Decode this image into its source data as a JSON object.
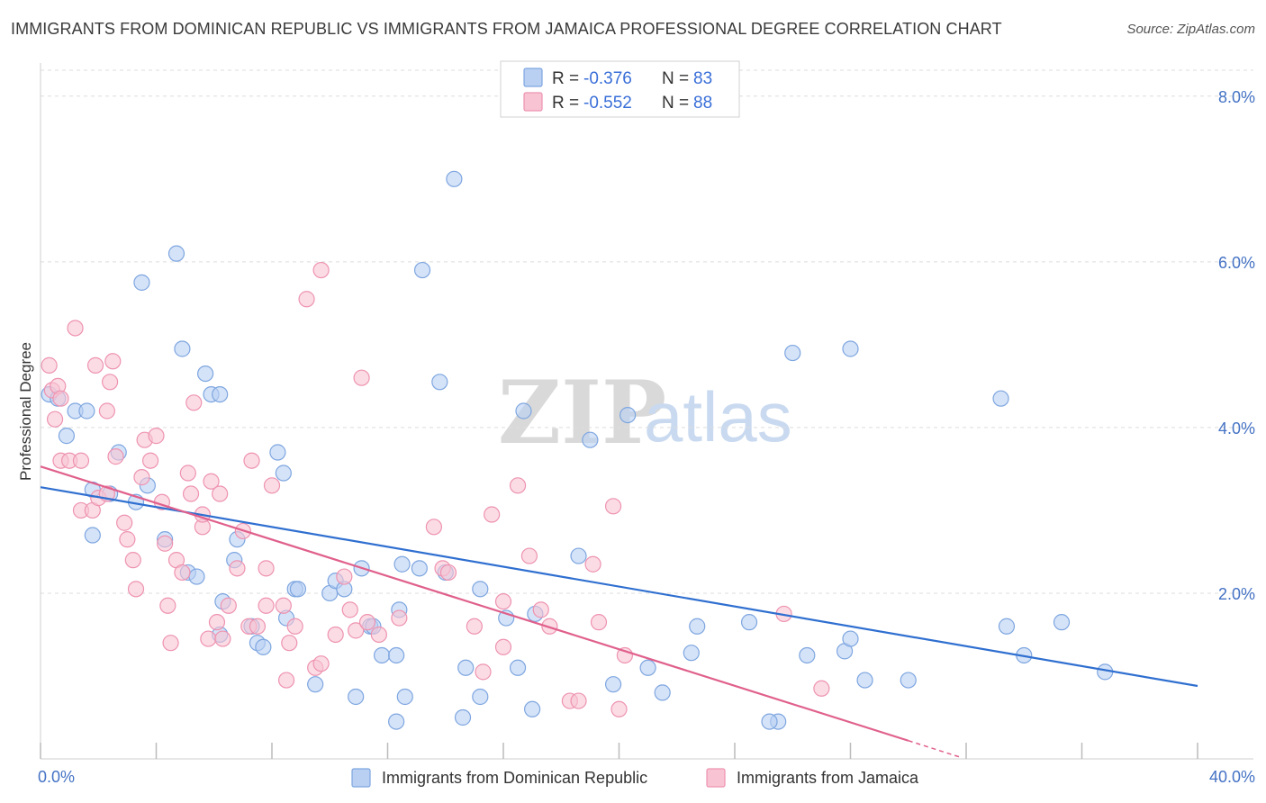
{
  "title": "IMMIGRANTS FROM DOMINICAN REPUBLIC VS IMMIGRANTS FROM JAMAICA PROFESSIONAL DEGREE CORRELATION CHART",
  "source": "Source: ZipAtlas.com",
  "watermark": {
    "zip": "ZIP",
    "atlas": "atlas"
  },
  "colors": {
    "blue_fill": "#b9d0f3",
    "blue_stroke": "#7ea6e0",
    "blue_line": "#2f6fd0",
    "pink_fill": "#f8c4d4",
    "pink_stroke": "#ee93b0",
    "pink_line": "#e0608c",
    "axis_text": "#4472c4",
    "grid": "#dddddd"
  },
  "legend": {
    "rows": [
      {
        "r_label": "R = ",
        "r_value": "-0.376",
        "n_label": "N = ",
        "n_value": "83"
      },
      {
        "r_label": "R = ",
        "r_value": "-0.552",
        "n_label": "N = ",
        "n_value": "88"
      }
    ]
  },
  "chart_data": {
    "type": "scatter",
    "title": "IMMIGRANTS FROM DOMINICAN REPUBLIC VS IMMIGRANTS FROM JAMAICA PROFESSIONAL DEGREE CORRELATION CHART",
    "xlabel": "",
    "ylabel": "Professional Degree",
    "xlim": [
      0,
      40
    ],
    "ylim": [
      0,
      8.4
    ],
    "x_tick_labels": [
      "0.0%",
      "40.0%"
    ],
    "y_ticks": [
      2,
      4,
      6,
      8
    ],
    "y_tick_labels": [
      "2.0%",
      "4.0%",
      "6.0%",
      "8.0%"
    ],
    "grid": true,
    "legend_position": "bottom",
    "series": [
      {
        "name": "Immigrants from Dominican Republic",
        "color": "#b9d0f3",
        "trend": {
          "x": [
            0,
            40
          ],
          "y": [
            3.28,
            0.88
          ]
        },
        "points": [
          [
            0.3,
            4.4
          ],
          [
            0.6,
            4.35
          ],
          [
            1.2,
            4.2
          ],
          [
            1.6,
            4.2
          ],
          [
            0.9,
            3.9
          ],
          [
            1.8,
            3.25
          ],
          [
            2.7,
            3.7
          ],
          [
            3.7,
            3.3
          ],
          [
            3.5,
            5.75
          ],
          [
            4.7,
            6.1
          ],
          [
            4.9,
            4.95
          ],
          [
            5.7,
            4.65
          ],
          [
            5.9,
            4.4
          ],
          [
            6.2,
            4.4
          ],
          [
            1.8,
            2.7
          ],
          [
            2.4,
            3.2
          ],
          [
            3.3,
            3.1
          ],
          [
            4.3,
            2.65
          ],
          [
            5.1,
            2.25
          ],
          [
            5.4,
            2.2
          ],
          [
            6.3,
            1.9
          ],
          [
            6.7,
            2.4
          ],
          [
            6.8,
            2.65
          ],
          [
            7.3,
            1.6
          ],
          [
            7.5,
            1.4
          ],
          [
            7.7,
            1.35
          ],
          [
            8.2,
            3.7
          ],
          [
            8.4,
            3.45
          ],
          [
            8.5,
            1.7
          ],
          [
            8.8,
            2.05
          ],
          [
            8.9,
            2.05
          ],
          [
            9.5,
            0.9
          ],
          [
            10.0,
            2.0
          ],
          [
            10.2,
            2.15
          ],
          [
            10.5,
            2.05
          ],
          [
            10.9,
            0.75
          ],
          [
            11.1,
            2.3
          ],
          [
            11.4,
            1.6
          ],
          [
            11.5,
            1.6
          ],
          [
            11.8,
            1.25
          ],
          [
            12.3,
            0.45
          ],
          [
            12.4,
            1.8
          ],
          [
            12.5,
            2.35
          ],
          [
            12.6,
            0.75
          ],
          [
            13.1,
            2.3
          ],
          [
            13.2,
            5.9
          ],
          [
            13.8,
            4.55
          ],
          [
            14.0,
            2.25
          ],
          [
            14.3,
            7.0
          ],
          [
            14.6,
            0.5
          ],
          [
            14.7,
            1.1
          ],
          [
            15.2,
            2.05
          ],
          [
            15.2,
            0.75
          ],
          [
            16.1,
            1.7
          ],
          [
            16.5,
            1.1
          ],
          [
            16.7,
            4.2
          ],
          [
            17.1,
            1.75
          ],
          [
            17.0,
            0.6
          ],
          [
            18.6,
            2.45
          ],
          [
            19.0,
            3.85
          ],
          [
            19.8,
            0.9
          ],
          [
            20.3,
            4.15
          ],
          [
            21.0,
            1.1
          ],
          [
            21.5,
            0.8
          ],
          [
            22.7,
            1.6
          ],
          [
            24.5,
            1.65
          ],
          [
            25.5,
            0.45
          ],
          [
            25.2,
            0.45
          ],
          [
            26.0,
            4.9
          ],
          [
            26.5,
            1.25
          ],
          [
            27.8,
            1.3
          ],
          [
            28.0,
            1.45
          ],
          [
            28.0,
            4.95
          ],
          [
            28.5,
            0.95
          ],
          [
            30.0,
            0.95
          ],
          [
            33.2,
            4.35
          ],
          [
            33.4,
            1.6
          ],
          [
            34.0,
            1.25
          ],
          [
            35.3,
            1.65
          ],
          [
            36.8,
            1.05
          ],
          [
            22.5,
            1.28
          ],
          [
            12.3,
            1.25
          ],
          [
            6.2,
            1.5
          ]
        ]
      },
      {
        "name": "Immigrants from Jamaica",
        "color": "#f8c4d4",
        "trend": {
          "x": [
            0,
            30.0
          ],
          "y": [
            3.53,
            0.22
          ]
        },
        "trend_dashed": {
          "x": [
            30.0,
            31.8
          ],
          "y": [
            0.22,
            0.02
          ]
        },
        "points": [
          [
            0.3,
            4.75
          ],
          [
            0.4,
            4.45
          ],
          [
            0.6,
            4.5
          ],
          [
            0.5,
            4.1
          ],
          [
            0.7,
            4.35
          ],
          [
            1.2,
            5.2
          ],
          [
            0.7,
            3.6
          ],
          [
            1.0,
            3.6
          ],
          [
            1.4,
            3.6
          ],
          [
            1.4,
            3.0
          ],
          [
            1.8,
            3.0
          ],
          [
            2.0,
            3.15
          ],
          [
            2.3,
            3.2
          ],
          [
            1.9,
            4.75
          ],
          [
            2.4,
            4.55
          ],
          [
            2.5,
            4.8
          ],
          [
            2.3,
            4.2
          ],
          [
            2.6,
            3.65
          ],
          [
            2.9,
            2.85
          ],
          [
            3.0,
            2.65
          ],
          [
            3.2,
            2.4
          ],
          [
            3.3,
            2.05
          ],
          [
            3.5,
            3.4
          ],
          [
            3.6,
            3.85
          ],
          [
            3.8,
            3.6
          ],
          [
            4.0,
            3.9
          ],
          [
            4.2,
            3.1
          ],
          [
            4.3,
            2.6
          ],
          [
            4.4,
            1.85
          ],
          [
            4.5,
            1.4
          ],
          [
            4.7,
            2.4
          ],
          [
            4.9,
            2.25
          ],
          [
            5.1,
            3.45
          ],
          [
            5.2,
            3.2
          ],
          [
            5.3,
            4.3
          ],
          [
            5.6,
            2.8
          ],
          [
            5.6,
            2.95
          ],
          [
            5.8,
            1.45
          ],
          [
            5.9,
            3.35
          ],
          [
            6.1,
            1.65
          ],
          [
            6.2,
            3.2
          ],
          [
            6.3,
            1.45
          ],
          [
            6.5,
            1.85
          ],
          [
            6.8,
            2.3
          ],
          [
            7.0,
            2.75
          ],
          [
            7.2,
            1.6
          ],
          [
            7.3,
            3.6
          ],
          [
            7.5,
            1.6
          ],
          [
            7.8,
            1.85
          ],
          [
            7.8,
            2.3
          ],
          [
            8.0,
            3.3
          ],
          [
            8.4,
            1.85
          ],
          [
            8.5,
            0.95
          ],
          [
            8.6,
            1.4
          ],
          [
            8.8,
            1.6
          ],
          [
            9.2,
            5.55
          ],
          [
            9.5,
            1.1
          ],
          [
            9.7,
            1.15
          ],
          [
            9.7,
            5.9
          ],
          [
            10.2,
            1.5
          ],
          [
            10.7,
            1.8
          ],
          [
            10.9,
            1.55
          ],
          [
            11.1,
            4.6
          ],
          [
            11.3,
            1.65
          ],
          [
            11.7,
            1.5
          ],
          [
            12.4,
            1.7
          ],
          [
            13.6,
            2.8
          ],
          [
            13.9,
            2.3
          ],
          [
            14.1,
            2.25
          ],
          [
            15.0,
            1.6
          ],
          [
            15.3,
            1.05
          ],
          [
            15.6,
            2.95
          ],
          [
            16.0,
            1.9
          ],
          [
            16.0,
            1.35
          ],
          [
            16.9,
            2.45
          ],
          [
            17.3,
            1.8
          ],
          [
            17.6,
            1.6
          ],
          [
            18.3,
            0.7
          ],
          [
            18.6,
            0.7
          ],
          [
            19.1,
            2.35
          ],
          [
            19.8,
            3.05
          ],
          [
            20.2,
            1.25
          ],
          [
            25.7,
            1.75
          ],
          [
            27.0,
            0.85
          ],
          [
            16.5,
            3.3
          ],
          [
            10.5,
            2.2
          ],
          [
            19.3,
            1.65
          ],
          [
            20.0,
            0.6
          ]
        ]
      }
    ]
  }
}
